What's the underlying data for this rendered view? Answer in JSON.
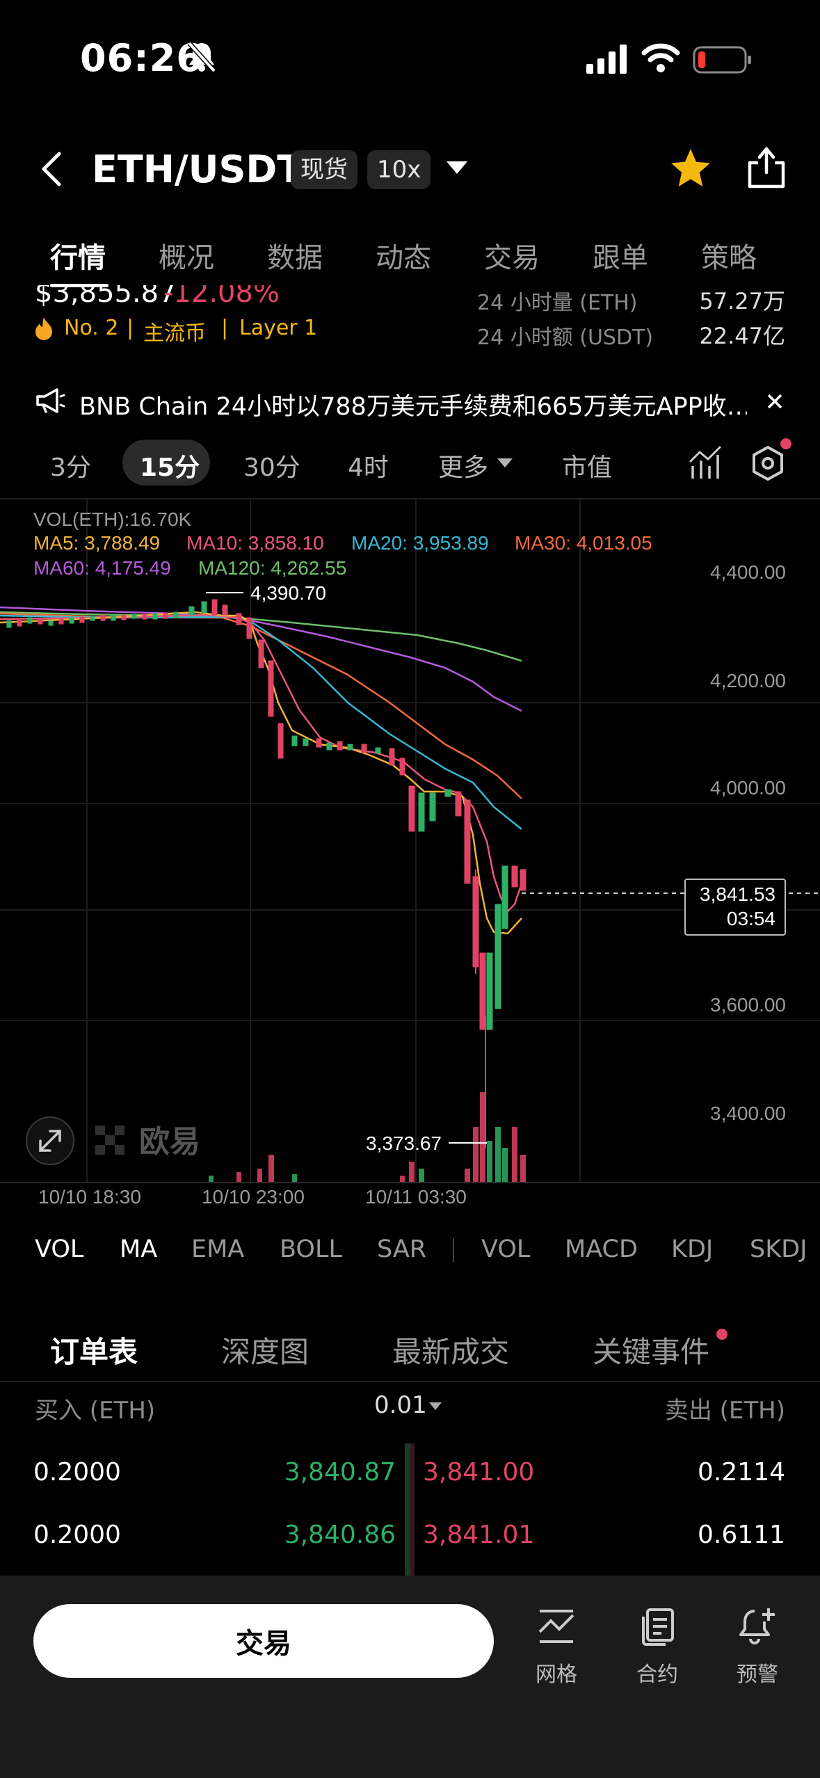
{
  "status": {
    "time": "06:26"
  },
  "header": {
    "pair": "ETH/USDT",
    "market_chip": "现货",
    "leverage_chip": "10x"
  },
  "tabs": [
    "行情",
    "概况",
    "数据",
    "动态",
    "交易",
    "跟单",
    "策略"
  ],
  "summary": {
    "price_partial": "$3,855.87",
    "change_partial": "-12.08%",
    "rank": "No. 2",
    "tag1": "主流币",
    "tag2": "Layer 1",
    "vol24_label": "24 小时量 (ETH)",
    "vol24_value": "57.27万",
    "amt24_label": "24 小时额 (USDT)",
    "amt24_value": "22.47亿"
  },
  "news": {
    "text": "BNB Chain 24小时以788万美元手续费和665万美元APP收…"
  },
  "intervals": [
    "3分",
    "15分",
    "30分",
    "4时",
    "更多",
    "市值"
  ],
  "chart": {
    "vol_label": "VOL(ETH):16.70K",
    "ma": {
      "ma5": "MA5: 3,788.49",
      "ma10": "MA10: 3,858.10",
      "ma20": "MA20: 3,953.89",
      "ma30": "MA30: 4,013.05",
      "ma60": "MA60: 4,175.49",
      "ma120": "MA120: 4,262.55"
    },
    "y_ticks": [
      "4,400.00",
      "4,200.00",
      "4,000.00",
      "3,600.00",
      "3,400.00"
    ],
    "high_label": "4,390.70",
    "low_label": "3,373.67",
    "current_price": "3,841.53",
    "countdown": "03:54",
    "x_ticks": [
      "10/10 18:30",
      "10/10 23:00",
      "10/11 03:30"
    ],
    "watermark": "欧易",
    "colors": {
      "up": "#2eb067",
      "down": "#e04464",
      "ma5": "#f2b23a",
      "ma10": "#e8567a",
      "ma20": "#36b7d3",
      "ma30": "#ef6a3c",
      "ma60": "#b45ad8",
      "ma120": "#6fbf6a"
    }
  },
  "indicators": [
    "VOL",
    "MA",
    "EMA",
    "BOLL",
    "SAR",
    "VOL",
    "MACD",
    "KDJ",
    "SKDJ"
  ],
  "orderbook": {
    "tabs": [
      "订单表",
      "深度图",
      "最新成交",
      "关键事件"
    ],
    "buy_header": "买入 (ETH)",
    "precision": "0.01",
    "sell_header": "卖出 (ETH)",
    "rows": [
      {
        "buy_qty": "0.2000",
        "bid": "3,840.87",
        "ask": "3,841.00",
        "sell_qty": "0.2114"
      },
      {
        "buy_qty": "0.2000",
        "bid": "3,840.86",
        "ask": "3,841.01",
        "sell_qty": "0.6111"
      }
    ]
  },
  "bottom": {
    "trade": "交易",
    "grid": "网格",
    "contract": "合约",
    "alert": "预警"
  }
}
